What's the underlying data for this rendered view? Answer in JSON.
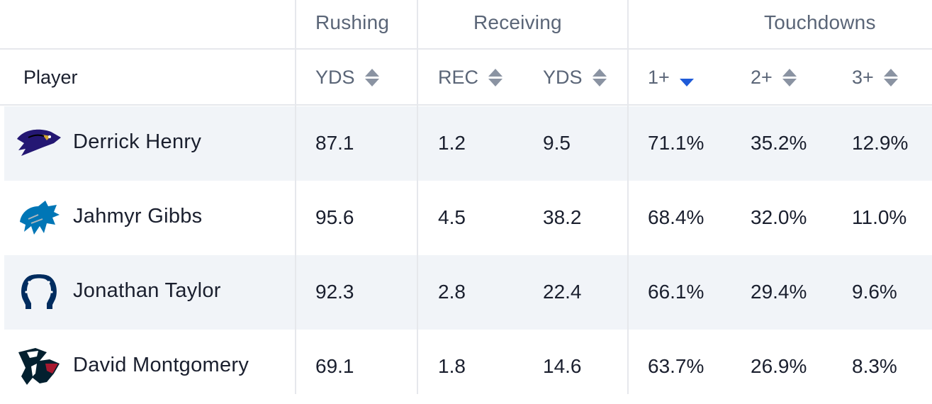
{
  "groups": {
    "rushing": "Rushing",
    "receiving": "Receiving",
    "touchdowns": "Touchdowns"
  },
  "columns": {
    "player": "Player",
    "rush_yds": "YDS",
    "rec": "REC",
    "rec_yds": "YDS",
    "td1": "1+",
    "td2": "2+",
    "td3": "3+"
  },
  "sort": {
    "active_column": "1+",
    "direction": "descending"
  },
  "colors": {
    "active_sort": "#1f5bd8",
    "row_alt": "#f1f4f8",
    "divider": "#e6e8ec"
  },
  "rows": [
    {
      "player": "Derrick Henry",
      "logo": "ravens-logo-icon",
      "rush_yds": "87.1",
      "rec": "1.2",
      "rec_yds": "9.5",
      "td1": "71.1%",
      "td2": "35.2%",
      "td3": "12.9%"
    },
    {
      "player": "Jahmyr Gibbs",
      "logo": "lions-logo-icon",
      "rush_yds": "95.6",
      "rec": "4.5",
      "rec_yds": "38.2",
      "td1": "68.4%",
      "td2": "32.0%",
      "td3": "11.0%"
    },
    {
      "player": "Jonathan Taylor",
      "logo": "colts-horseshoe-icon",
      "rush_yds": "92.3",
      "rec": "2.8",
      "rec_yds": "22.4",
      "td1": "66.1%",
      "td2": "29.4%",
      "td3": "9.6%"
    },
    {
      "player": "David Montgomery",
      "logo": "texans-logo-icon",
      "rush_yds": "69.1",
      "rec": "1.8",
      "rec_yds": "14.6",
      "td1": "63.7%",
      "td2": "26.9%",
      "td3": "8.3%"
    }
  ]
}
